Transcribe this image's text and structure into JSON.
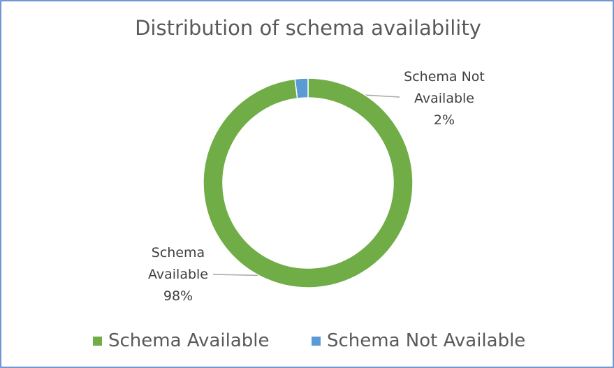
{
  "chart_data": {
    "type": "doughnut",
    "title": "Distribution of schema availability",
    "categories": [
      "Schema Available",
      "Schema Not Available"
    ],
    "values": [
      98,
      2
    ],
    "value_labels": [
      "98%",
      "2%"
    ],
    "colors": [
      "#70ad47",
      "#5b9bd5"
    ],
    "legend": "bottom"
  }
}
